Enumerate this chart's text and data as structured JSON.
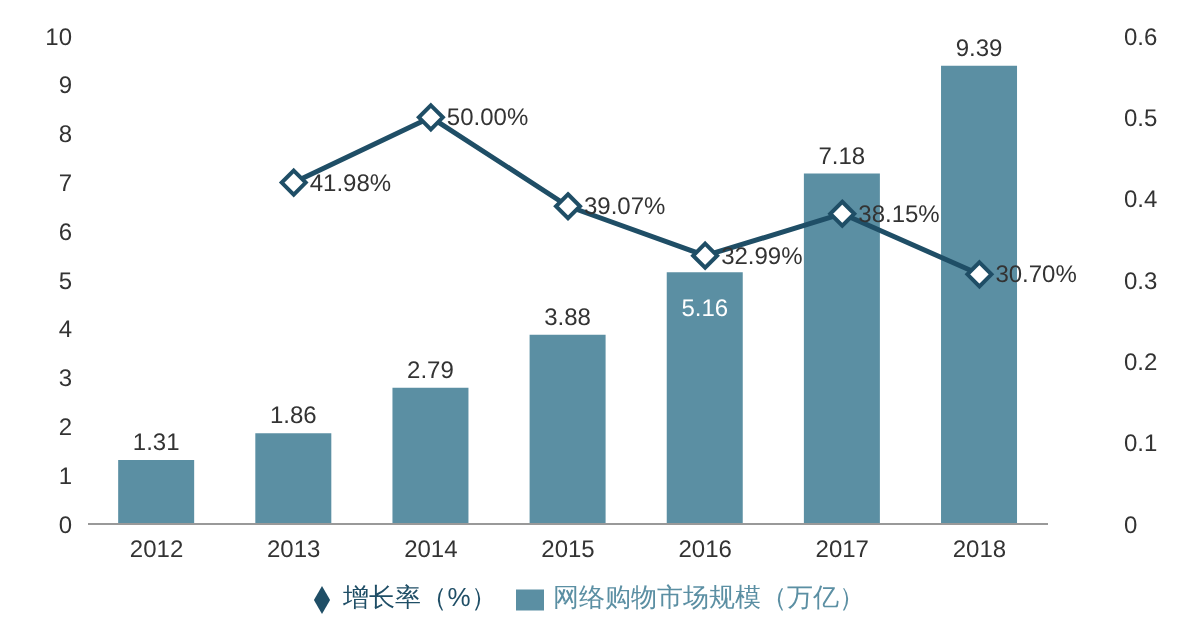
{
  "chart_data": {
    "type": "bar",
    "categories": [
      "2012",
      "2013",
      "2014",
      "2015",
      "2016",
      "2017",
      "2018"
    ],
    "series": [
      {
        "name": "网络购物市场规模（万亿）",
        "color": "#5b8fa3",
        "values": [
          1.31,
          1.86,
          2.79,
          3.88,
          5.16,
          7.18,
          9.39
        ],
        "value_labels": [
          "1.31",
          "1.86",
          "2.79",
          "3.88",
          "5.16",
          "7.18",
          "9.39"
        ]
      },
      {
        "name": "增长率（%）",
        "type": "line",
        "axis": "y2",
        "color": "#1f4e66",
        "values": [
          null,
          0.4198,
          0.5,
          0.3907,
          0.3299,
          0.3815,
          0.307
        ],
        "value_labels": [
          null,
          "41.98%",
          "50.00%",
          "39.07%",
          "32.99%",
          "38.15%",
          "30.70%"
        ]
      }
    ],
    "ylim": [
      0,
      10
    ],
    "yticks": [
      0,
      1,
      2,
      3,
      4,
      5,
      6,
      7,
      8,
      9,
      10
    ],
    "y2lim": [
      0,
      0.6
    ],
    "y2ticks": [
      0,
      0.1,
      0.2,
      0.3,
      0.4,
      0.5,
      0.6
    ],
    "grid": false,
    "legend": "bottom",
    "marker": "diamond",
    "line_style": "solid"
  }
}
